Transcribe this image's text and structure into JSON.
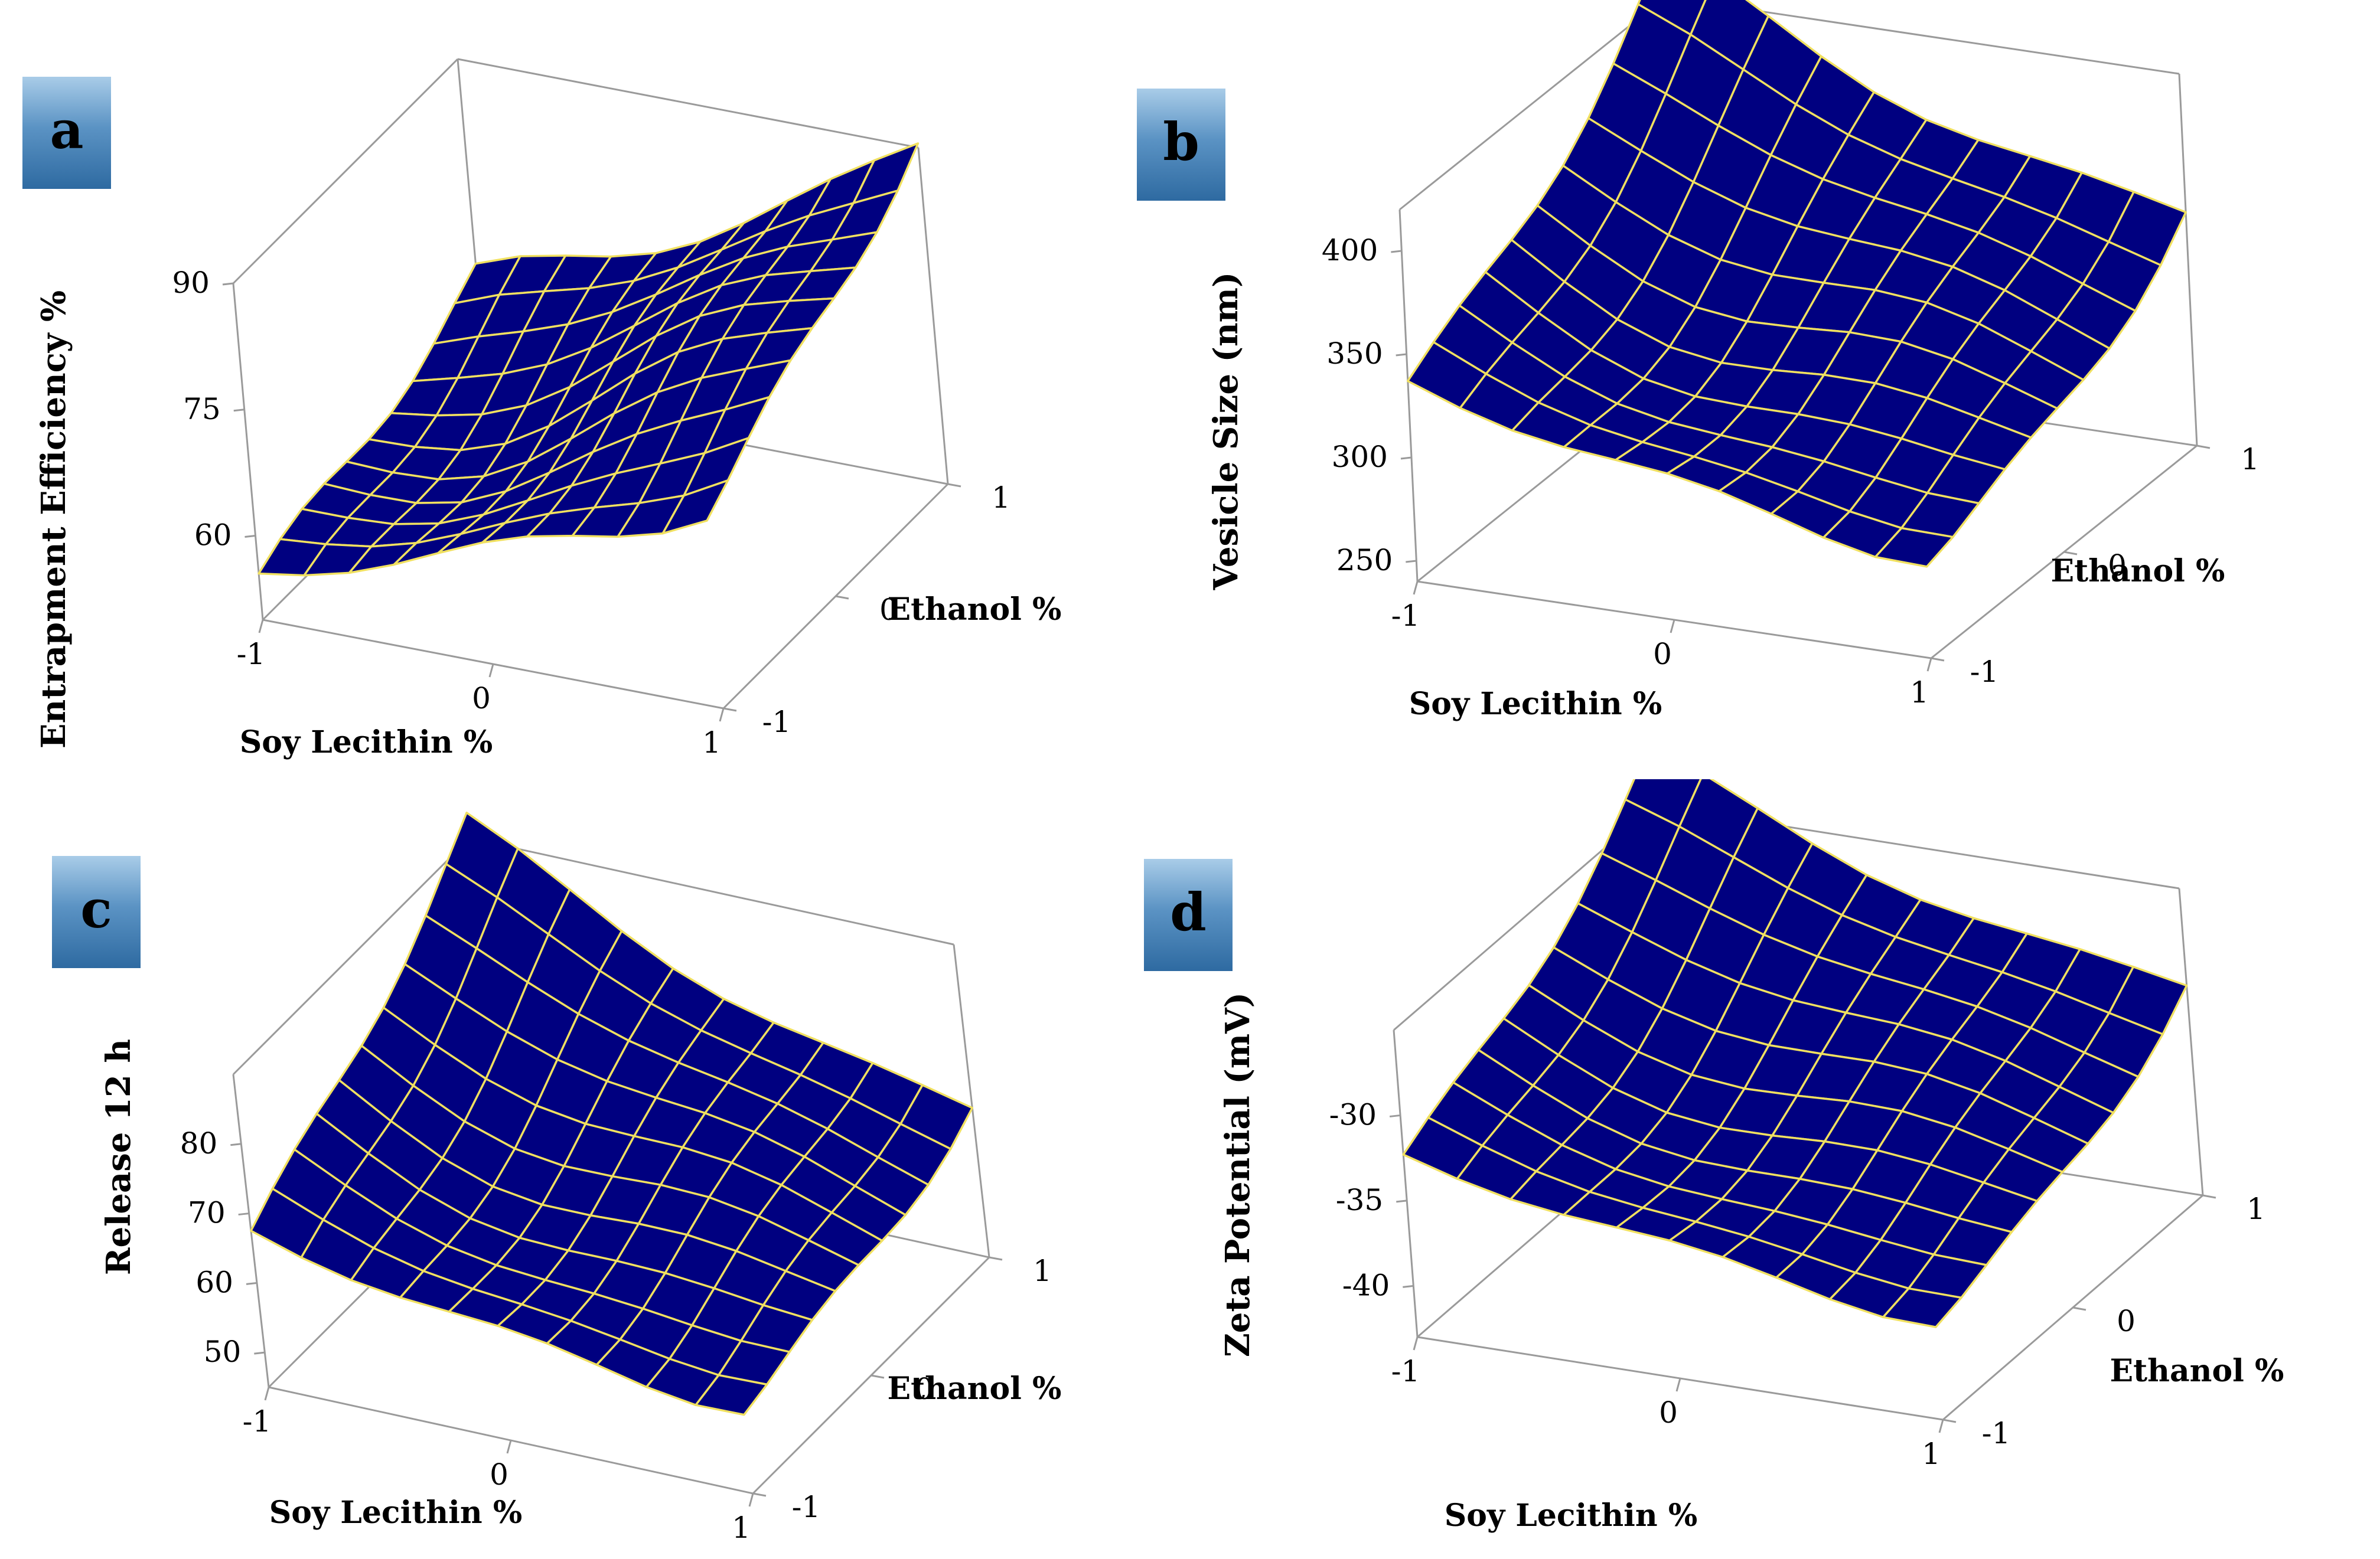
{
  "chart_data": [
    {
      "type": "surface",
      "panel_label": "a",
      "zlabel": "Entrapment Efficiency %",
      "xlabel": "Soy Lecithin %",
      "ylabel": "Ethanol %",
      "x_ticks": [
        "-1",
        "0",
        "1"
      ],
      "y_ticks": [
        "-1",
        "0",
        "1"
      ],
      "z_ticks": [
        "60",
        "75",
        "90"
      ],
      "zlim": [
        50,
        90
      ],
      "x": [
        -1,
        -0.8,
        -0.6,
        -0.4,
        -0.2,
        0,
        0.2,
        0.4,
        0.6,
        0.8,
        1
      ],
      "y": [
        -1,
        -0.8,
        -0.6,
        -0.4,
        -0.2,
        0,
        0.2,
        0.4,
        0.6,
        0.8,
        1
      ],
      "model": {
        "c": 68,
        "a": 12,
        "b": 6,
        "ab": 2,
        "aa": 2,
        "bb": 1,
        "wave": 3
      },
      "colors": {
        "surface": "#000080",
        "mesh": "#f0e060",
        "box": "#9a9a9a"
      }
    },
    {
      "type": "surface",
      "panel_label": "b",
      "zlabel": "Vesicle Size (nm)",
      "xlabel": "Soy Lecithin %",
      "ylabel": "Ethanol %",
      "x_ticks": [
        "-1",
        "0",
        "1"
      ],
      "y_ticks": [
        "-1",
        "0",
        "1"
      ],
      "z_ticks": [
        "250",
        "300",
        "350",
        "400"
      ],
      "zlim": [
        240,
        420
      ],
      "x": [
        -1,
        -0.8,
        -0.6,
        -0.4,
        -0.2,
        0,
        0.2,
        0.4,
        0.6,
        0.8,
        1
      ],
      "y": [
        -1,
        -0.8,
        -0.6,
        -0.4,
        -0.2,
        0,
        0.2,
        0.4,
        0.6,
        0.8,
        1
      ],
      "model": {
        "c": 330,
        "a": -30,
        "b": 40,
        "ab": -10,
        "aa": 10,
        "bb": 15,
        "wave": 12
      },
      "colors": {
        "surface": "#000080",
        "mesh": "#f0e060",
        "box": "#9a9a9a"
      }
    },
    {
      "type": "surface",
      "panel_label": "c",
      "zlabel": "Release 12 h",
      "xlabel": "Soy Lecithin %",
      "ylabel": "Ethanol %",
      "x_ticks": [
        "-1",
        "0",
        "1"
      ],
      "y_ticks": [
        "-1",
        "0",
        "1"
      ],
      "z_ticks": [
        "50",
        "60",
        "70",
        "80"
      ],
      "zlim": [
        45,
        90
      ],
      "x": [
        -1,
        -0.8,
        -0.6,
        -0.4,
        -0.2,
        0,
        0.2,
        0.4,
        0.6,
        0.8,
        1
      ],
      "y": [
        -1,
        -0.8,
        -0.6,
        -0.4,
        -0.2,
        0,
        0.2,
        0.4,
        0.6,
        0.8,
        1
      ],
      "model": {
        "c": 66,
        "a": -8,
        "b": 8,
        "ab": -4,
        "aa": 3,
        "bb": 2,
        "wave": 3
      },
      "colors": {
        "surface": "#000080",
        "mesh": "#f0e060",
        "box": "#9a9a9a"
      }
    },
    {
      "type": "surface",
      "panel_label": "d",
      "zlabel": "Zeta Potential (mV)",
      "xlabel": "Soy Lecithin %",
      "ylabel": "Ethanol %",
      "x_ticks": [
        "-1",
        "0",
        "1"
      ],
      "y_ticks": [
        "-1",
        "0",
        "1"
      ],
      "z_ticks": [
        "-40",
        "-35",
        "-30"
      ],
      "zlim": [
        -43,
        -25
      ],
      "x": [
        -1,
        -0.8,
        -0.6,
        -0.4,
        -0.2,
        0,
        0.2,
        0.4,
        0.6,
        0.8,
        1
      ],
      "y": [
        -1,
        -0.8,
        -0.6,
        -0.4,
        -0.2,
        0,
        0.2,
        0.4,
        0.6,
        0.8,
        1
      ],
      "model": {
        "c": -33,
        "a": -3,
        "b": 4,
        "ab": -1,
        "aa": 1,
        "bb": 1.5,
        "wave": 1.2
      },
      "colors": {
        "surface": "#000080",
        "mesh": "#f0e060",
        "box": "#9a9a9a"
      }
    }
  ]
}
